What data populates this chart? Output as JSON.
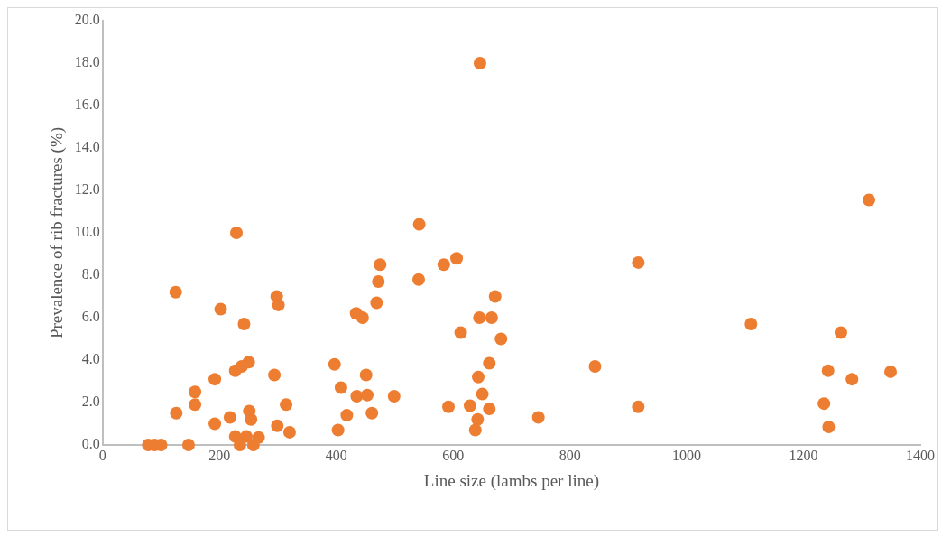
{
  "chart_data": {
    "type": "scatter",
    "xlabel": "Line size (lambs per line)",
    "ylabel": "Prevalence of rib fractures (%)",
    "marker": "circle",
    "grid": false,
    "legend": false,
    "xlim": [
      0,
      1400
    ],
    "xticks": [
      0,
      200,
      400,
      600,
      800,
      1000,
      1200,
      1400
    ],
    "ylim": [
      0,
      20
    ],
    "yticks": [
      {
        "value": 0,
        "label": "0.0"
      },
      {
        "value": 2,
        "label": "2.0"
      },
      {
        "value": 4,
        "label": "4.0"
      },
      {
        "value": 6,
        "label": "6.0"
      },
      {
        "value": 8,
        "label": "8.0"
      },
      {
        "value": 10,
        "label": "10.0"
      },
      {
        "value": 12,
        "label": "12.0"
      },
      {
        "value": 14,
        "label": "14.0"
      },
      {
        "value": 16,
        "label": "16.0"
      },
      {
        "value": 18,
        "label": "18.0"
      },
      {
        "value": 20,
        "label": "20.0"
      }
    ],
    "series": [
      {
        "color": "#ed7d31",
        "x": [
          125,
          202,
          242,
          298,
          301,
          227,
          238,
          250,
          192,
          294,
          158,
          158,
          126,
          192,
          218,
          251,
          254,
          299,
          314,
          320,
          227,
          246,
          267,
          235,
          258,
          78,
          100,
          89,
          147,
          229,
          542,
          475,
          472,
          541,
          584,
          606,
          469,
          434,
          445,
          672,
          645,
          666,
          613,
          682,
          662,
          643,
          650,
          662,
          629,
          592,
          642,
          638,
          397,
          451,
          408,
          435,
          453,
          499,
          418,
          461,
          403,
          746,
          646,
          917,
          843,
          917,
          1312,
          1110,
          1264,
          1242,
          1283,
          1349,
          1235,
          1243
        ],
        "values": [
          7.2,
          6.4,
          5.7,
          7.0,
          6.6,
          3.5,
          3.7,
          3.9,
          3.1,
          3.3,
          2.5,
          1.9,
          1.5,
          1.0,
          1.3,
          1.6,
          1.2,
          0.9,
          1.9,
          0.6,
          0.4,
          0.4,
          0.35,
          0,
          0,
          0,
          0,
          0,
          0,
          10.0,
          10.4,
          8.5,
          7.7,
          7.8,
          8.5,
          8.8,
          6.7,
          6.2,
          6.0,
          7.0,
          6.0,
          6.0,
          5.3,
          5.0,
          3.85,
          3.2,
          2.4,
          1.7,
          1.85,
          1.8,
          1.2,
          0.7,
          3.8,
          3.3,
          2.7,
          2.3,
          2.35,
          2.3,
          1.4,
          1.5,
          0.7,
          1.3,
          18.0,
          8.6,
          3.7,
          1.8,
          11.55,
          5.7,
          5.3,
          3.5,
          3.1,
          3.45,
          1.95,
          0.85
        ]
      }
    ]
  }
}
